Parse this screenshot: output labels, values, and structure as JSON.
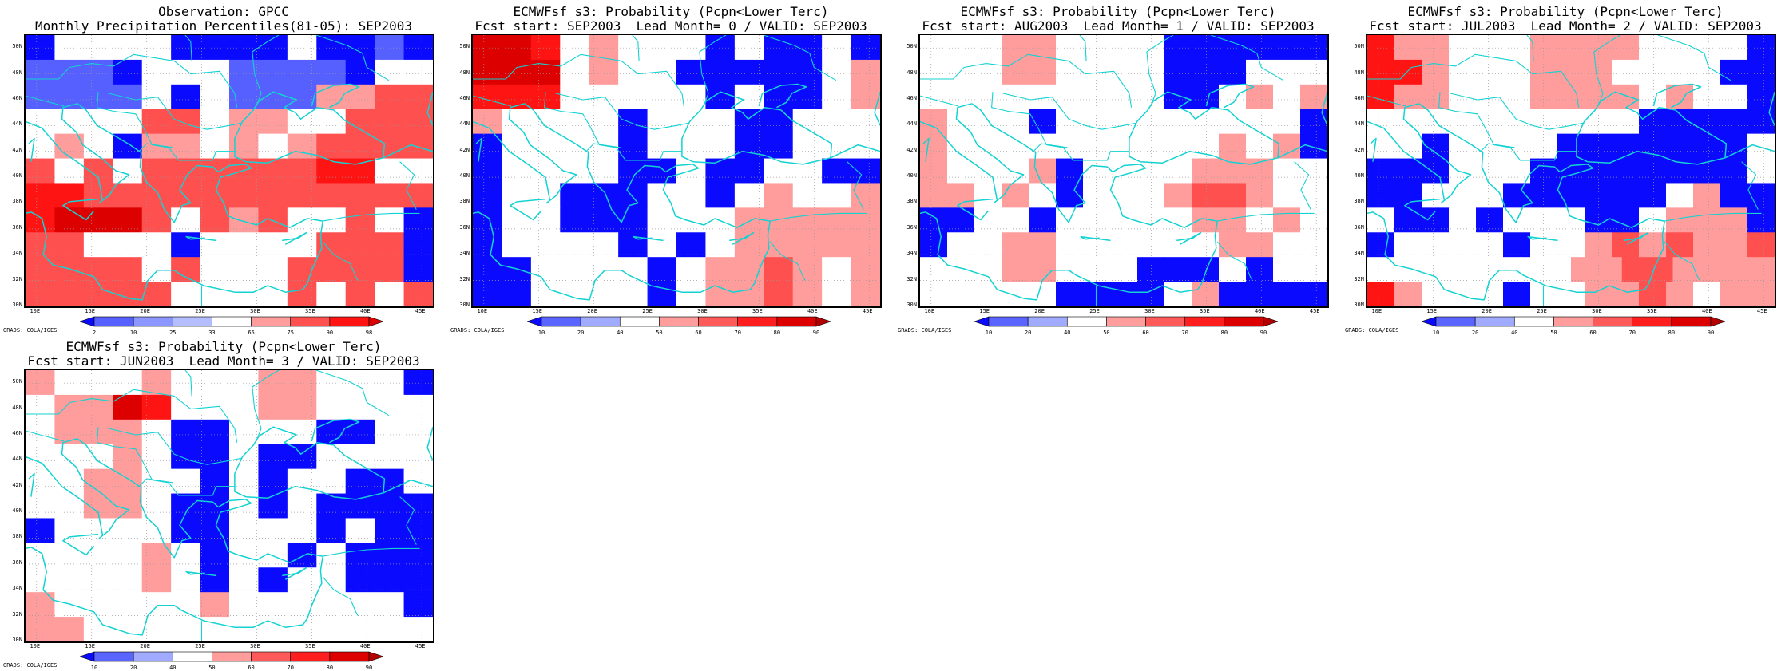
{
  "credit": "GRADS: COLA/IGES",
  "lat_labels": [
    "50N",
    "48N",
    "46N",
    "44N",
    "42N",
    "40N",
    "38N",
    "36N",
    "34N",
    "32N",
    "30N"
  ],
  "lon_labels": [
    "10E",
    "15E",
    "20E",
    "25E",
    "30E",
    "35E",
    "40E",
    "45E"
  ],
  "colors": {
    "blue_dark": "#0a0aff",
    "blue_mid": "#5560ff",
    "blue_light": "#8c96ff",
    "white": "#ffffff",
    "pink": "#ff9c9c",
    "red_mid": "#ff5050",
    "red": "#ff1414",
    "red_dark": "#dc0000",
    "coast": "#14d2d2"
  },
  "panels": [
    {
      "id": "gpcc",
      "title1": "Observation: GPCC",
      "title2": "Monthly Precipitation Percentiles(81-05): SEP2003",
      "colorbar": [
        "2",
        "10",
        "25",
        "33",
        "66",
        "75",
        "90",
        "98"
      ],
      "colorbar_colors": [
        "#0a0aff",
        "#5560ff",
        "#8c96ff",
        "#b4beff",
        "#ffffff",
        "#ff9c9c",
        "#ff5050",
        "#ff1414",
        "#dc0000"
      ],
      "rows": [
        "1WW001111W1131",
        "3331WWW33331WW",
        "3333W1W3334455",
        "WWWW55W44WW555",
        "W4W144W4W45555",
        "5W5W55555566WW",
        "66555555555555",
        "67775W545WW5W1",
        "55WWW1WWWW5551",
        "5555W5WWW55551",
        "55555WWWW5W5W5"
      ]
    },
    {
      "id": "lead0",
      "title1": "ECMWFsf s3: Probability (Pcpn<Lower Terc)",
      "title2": "Fcst start: SEP2003  Lead Month= 0 / VALID: SEP2003",
      "colorbar": [
        "10",
        "20",
        "40",
        "50",
        "60",
        "70",
        "80",
        "90"
      ],
      "colorbar_colors": [
        "#0a0aff",
        "#5a64ff",
        "#a0aaff",
        "#ffffff",
        "#ff9c9c",
        "#ff5a5a",
        "#ff1e1e",
        "#dc0000",
        "#b40000"
      ],
      "rows": [
        "776W4WWW1W11W1",
        "777W4WW11111W4",
        "666WWWWW1W11W4",
        "4WWWW1WWW11WWW",
        "1WWWW1WWW11WWW",
        "1WWWW11W11WW11",
        "1WW111WW1W4WW4",
        "1WW111WWW44444",
        "1WWWW1W1W44444",
        "11WWWW1W4454W4",
        "11WWWW1W4454W4"
      ]
    },
    {
      "id": "lead1",
      "title1": "ECMWFsf s3: Probability (Pcpn<Lower Terc)",
      "title2": "Fcst start: AUG2003  Lead Month= 1 / VALID: SEP2003",
      "colorbar": [
        "10",
        "20",
        "40",
        "50",
        "60",
        "70",
        "80",
        "90"
      ],
      "colorbar_colors": [
        "#0a0aff",
        "#5a64ff",
        "#a0aaff",
        "#ffffff",
        "#ff9c9c",
        "#ff5a5a",
        "#ff1e1e",
        "#dc0000",
        "#b40000"
      ],
      "rows": [
        "WWW44WWWW111111",
        "WWW44WWWW111WWW",
        "WWWWWWWWW11W4W4",
        "4WWW1WWWWWWWWW1",
        "4WWWWWWWWWW4W41",
        "4WWW41WWWW444WW",
        "44W4W1WWW4554WW",
        "11WW1WWWWW44W4W",
        "1WW44WWWWWW44WW",
        "WWW44WWW111W1WW",
        "WWWWW1111W41111"
      ]
    },
    {
      "id": "lead2",
      "title1": "ECMWFsf s3: Probability (Pcpn<Lower Terc)",
      "title2": "Fcst start: JUL2003  Lead Month= 2 / VALID: SEP2003",
      "colorbar": [
        "10",
        "20",
        "40",
        "50",
        "60",
        "70",
        "80",
        "90"
      ],
      "colorbar_colors": [
        "#0a0aff",
        "#5a64ff",
        "#a0aaff",
        "#ffffff",
        "#ff9c9c",
        "#ff5a5a",
        "#ff1e1e",
        "#dc0000",
        "#b40000"
      ],
      "rows": [
        "644WWW4444WWWW1",
        "664WWW444WWWW11",
        "644WWW4444W4WW1",
        "WWWWWWWWWW11111",
        "WW1WWWW1111111W",
        "111WWW11111111W",
        "11WWW111111W411",
        "W11W1WWW11W4441",
        "1WWWW1WW4545445",
        "WWWWWWWW44554444",
        "64WWW1WW4454W44"
      ]
    },
    {
      "id": "lead3",
      "title1": "ECMWFsf s3: Probability (Pcpn<Lower Terc)",
      "title2": "Fcst start: JUN2003  Lead Month= 3 / VALID: SEP2003",
      "colorbar": [
        "10",
        "20",
        "40",
        "50",
        "60",
        "70",
        "80",
        "90"
      ],
      "colorbar_colors": [
        "#0a0aff",
        "#5a64ff",
        "#a0aaff",
        "#ffffff",
        "#ff9c9c",
        "#ff5a5a",
        "#ff1e1e",
        "#dc0000",
        "#b40000"
      ],
      "rows": [
        "4WWW4WWW44WWW1",
        "W4476WWW44WWWW",
        "W444W11WWW11WW",
        "WWW4W11W11WWWW",
        "WW44WW1W1WW11W",
        "WW44W11W1W1111",
        "1WWWW11WWW1W11",
        "WWWW4W1WW1W111",
        "WWWW4W1W1WW111",
        "4WWWWW4WWWWWW1",
        "44WWWWWWWWWWWW"
      ]
    }
  ]
}
